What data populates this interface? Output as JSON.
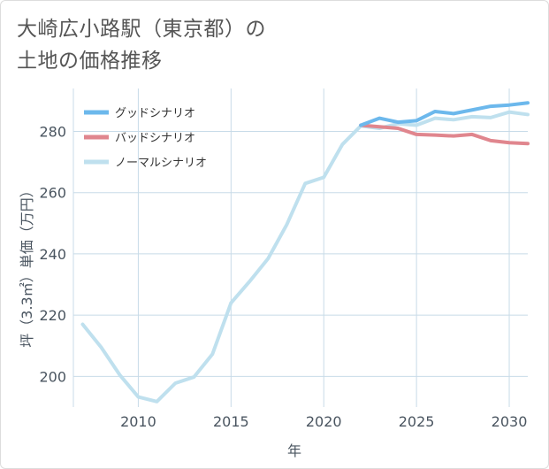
{
  "title": {
    "line1": "大崎広小路駅（東京都）の",
    "line2": "土地の価格推移"
  },
  "colors": {
    "good": "#6cb8ec",
    "bad": "#e0868e",
    "normal": "#bfe0ee",
    "grid": "#c8dbe8",
    "text": "#4a5560"
  },
  "chart_data": {
    "type": "line",
    "xlabel": "年",
    "ylabel": "坪（3.3㎡）単価（万円）",
    "xlim": [
      2006.5,
      2031
    ],
    "ylim": [
      190,
      294
    ],
    "xticks": [
      2010,
      2015,
      2020,
      2025,
      2030
    ],
    "yticks": [
      200,
      220,
      240,
      260,
      280
    ],
    "grid": true,
    "legend_position": "top-left",
    "series": [
      {
        "key": "good",
        "name": "グッドシナリオ",
        "x": [
          2022,
          2023,
          2024,
          2025,
          2026,
          2027,
          2028,
          2029,
          2030,
          2031
        ],
        "y": [
          282,
          284.3,
          283,
          283.5,
          286.5,
          285.8,
          287,
          288.2,
          288.6,
          289.3
        ]
      },
      {
        "key": "bad",
        "name": "バッドシナリオ",
        "x": [
          2022,
          2023,
          2024,
          2025,
          2026,
          2027,
          2028,
          2029,
          2030,
          2031
        ],
        "y": [
          282,
          281.5,
          281,
          279,
          278.8,
          278.5,
          279,
          277,
          276.3,
          276
        ]
      },
      {
        "key": "normal",
        "name": "ノーマルシナリオ",
        "x": [
          2007,
          2008,
          2009,
          2010,
          2011,
          2012,
          2013,
          2014,
          2015,
          2016,
          2017,
          2018,
          2019,
          2020,
          2021,
          2022,
          2023,
          2024,
          2025,
          2026,
          2027,
          2028,
          2029,
          2030,
          2031
        ],
        "y": [
          217,
          209.5,
          200.5,
          193.3,
          191.8,
          197.8,
          199.8,
          207.3,
          224,
          231,
          238.5,
          249.5,
          263,
          265,
          275.7,
          281.8,
          281,
          282.5,
          282,
          284.3,
          283.8,
          284.8,
          284.5,
          286.3,
          285.5
        ]
      }
    ]
  }
}
